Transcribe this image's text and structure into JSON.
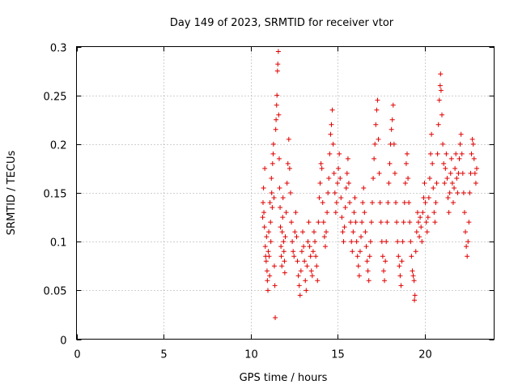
{
  "chart_data": {
    "type": "scatter",
    "title": "Day 149 of 2023, SRMTID for receiver vtor",
    "xlabel": "GPS time / hours",
    "ylabel": "SRMTID / TECUs",
    "xlim": [
      0,
      24
    ],
    "ylim": [
      0,
      0.3
    ],
    "xticks": [
      "0",
      "5",
      "10",
      "15",
      "20"
    ],
    "xtick_values": [
      0,
      5,
      10,
      15,
      20
    ],
    "yticks": [
      "0",
      "0.05",
      "0.1",
      "0.15",
      "0.2",
      "0.25",
      "0.3"
    ],
    "ytick_values": [
      0,
      0.05,
      0.1,
      0.15,
      0.2,
      0.25,
      0.3
    ],
    "grid": true,
    "marker": "+",
    "color": "#e00000",
    "series": [
      {
        "points": [
          [
            10.7,
            0.125
          ],
          [
            10.72,
            0.14
          ],
          [
            10.75,
            0.155
          ],
          [
            10.77,
            0.13
          ],
          [
            10.8,
            0.115
          ],
          [
            10.82,
            0.175
          ],
          [
            10.85,
            0.095
          ],
          [
            10.87,
            0.085
          ],
          [
            10.9,
            0.08
          ],
          [
            10.92,
            0.105
          ],
          [
            10.95,
            0.07
          ],
          [
            10.97,
            0.06
          ],
          [
            11.0,
            0.05
          ],
          [
            11.02,
            0.09
          ],
          [
            11.05,
            0.11
          ],
          [
            11.07,
            0.085
          ],
          [
            11.1,
            0.065
          ],
          [
            11.12,
            0.14
          ],
          [
            11.15,
            0.12
          ],
          [
            11.17,
            0.1
          ],
          [
            11.2,
            0.165
          ],
          [
            11.22,
            0.15
          ],
          [
            11.25,
            0.135
          ],
          [
            11.27,
            0.18
          ],
          [
            11.3,
            0.19
          ],
          [
            11.32,
            0.2
          ],
          [
            11.35,
            0.145
          ],
          [
            11.37,
            0.075
          ],
          [
            11.4,
            0.055
          ],
          [
            11.42,
            0.022
          ],
          [
            11.45,
            0.215
          ],
          [
            11.47,
            0.225
          ],
          [
            11.5,
            0.24
          ],
          [
            11.52,
            0.25
          ],
          [
            11.55,
            0.275
          ],
          [
            11.57,
            0.282
          ],
          [
            11.6,
            0.295
          ],
          [
            11.62,
            0.23
          ],
          [
            11.65,
            0.185
          ],
          [
            11.67,
            0.155
          ],
          [
            11.7,
            0.135
          ],
          [
            11.72,
            0.115
          ],
          [
            11.75,
            0.095
          ],
          [
            11.77,
            0.085
          ],
          [
            11.8,
            0.075
          ],
          [
            11.82,
            0.11
          ],
          [
            11.85,
            0.125
          ],
          [
            11.87,
            0.145
          ],
          [
            11.9,
            0.1
          ],
          [
            11.92,
            0.09
          ],
          [
            11.95,
            0.08
          ],
          [
            11.97,
            0.068
          ],
          [
            12.0,
            0.105
          ],
          [
            12.05,
            0.13
          ],
          [
            12.1,
            0.16
          ],
          [
            12.15,
            0.18
          ],
          [
            12.2,
            0.205
          ],
          [
            12.25,
            0.175
          ],
          [
            12.3,
            0.15
          ],
          [
            12.35,
            0.12
          ],
          [
            12.4,
            0.1
          ],
          [
            12.45,
            0.09
          ],
          [
            12.5,
            0.085
          ],
          [
            12.55,
            0.11
          ],
          [
            12.6,
            0.13
          ],
          [
            12.65,
            0.105
          ],
          [
            12.7,
            0.08
          ],
          [
            12.75,
            0.065
          ],
          [
            12.8,
            0.055
          ],
          [
            12.85,
            0.045
          ],
          [
            12.9,
            0.07
          ],
          [
            12.95,
            0.09
          ],
          [
            13.0,
            0.11
          ],
          [
            13.05,
            0.095
          ],
          [
            13.1,
            0.08
          ],
          [
            13.15,
            0.06
          ],
          [
            13.2,
            0.05
          ],
          [
            13.25,
            0.075
          ],
          [
            13.3,
            0.1
          ],
          [
            13.35,
            0.12
          ],
          [
            13.4,
            0.095
          ],
          [
            13.45,
            0.085
          ],
          [
            13.5,
            0.07
          ],
          [
            13.55,
            0.065
          ],
          [
            13.6,
            0.09
          ],
          [
            13.65,
            0.11
          ],
          [
            13.7,
            0.1
          ],
          [
            13.75,
            0.085
          ],
          [
            13.8,
            0.075
          ],
          [
            13.85,
            0.06
          ],
          [
            13.9,
            0.12
          ],
          [
            13.95,
            0.145
          ],
          [
            14.0,
            0.16
          ],
          [
            14.05,
            0.18
          ],
          [
            14.1,
            0.175
          ],
          [
            14.15,
            0.14
          ],
          [
            14.2,
            0.12
          ],
          [
            14.25,
            0.105
          ],
          [
            14.3,
            0.095
          ],
          [
            14.35,
            0.11
          ],
          [
            14.4,
            0.13
          ],
          [
            14.45,
            0.15
          ],
          [
            14.5,
            0.165
          ],
          [
            14.55,
            0.19
          ],
          [
            14.6,
            0.21
          ],
          [
            14.65,
            0.22
          ],
          [
            14.7,
            0.235
          ],
          [
            14.75,
            0.2
          ],
          [
            14.8,
            0.17
          ],
          [
            14.85,
            0.15
          ],
          [
            14.9,
            0.13
          ],
          [
            14.95,
            0.14
          ],
          [
            15.0,
            0.16
          ],
          [
            15.05,
            0.175
          ],
          [
            15.1,
            0.19
          ],
          [
            15.15,
            0.165
          ],
          [
            15.2,
            0.145
          ],
          [
            15.25,
            0.125
          ],
          [
            15.3,
            0.11
          ],
          [
            15.35,
            0.1
          ],
          [
            15.4,
            0.115
          ],
          [
            15.45,
            0.135
          ],
          [
            15.5,
            0.155
          ],
          [
            15.55,
            0.17
          ],
          [
            15.6,
            0.185
          ],
          [
            15.65,
            0.16
          ],
          [
            15.7,
            0.14
          ],
          [
            15.75,
            0.12
          ],
          [
            15.8,
            0.1
          ],
          [
            15.85,
            0.09
          ],
          [
            15.9,
            0.11
          ],
          [
            15.95,
            0.13
          ],
          [
            16.0,
            0.145
          ],
          [
            16.05,
            0.12
          ],
          [
            16.1,
            0.1
          ],
          [
            16.15,
            0.085
          ],
          [
            16.2,
            0.075
          ],
          [
            16.25,
            0.065
          ],
          [
            16.3,
            0.09
          ],
          [
            16.35,
            0.105
          ],
          [
            16.4,
            0.12
          ],
          [
            16.45,
            0.14
          ],
          [
            16.5,
            0.155
          ],
          [
            16.55,
            0.13
          ],
          [
            16.6,
            0.11
          ],
          [
            16.65,
            0.095
          ],
          [
            16.7,
            0.08
          ],
          [
            16.75,
            0.07
          ],
          [
            16.8,
            0.06
          ],
          [
            16.85,
            0.085
          ],
          [
            16.9,
            0.1
          ],
          [
            16.95,
            0.12
          ],
          [
            17.0,
            0.14
          ],
          [
            17.05,
            0.165
          ],
          [
            17.1,
            0.185
          ],
          [
            17.15,
            0.2
          ],
          [
            17.2,
            0.22
          ],
          [
            17.25,
            0.235
          ],
          [
            17.3,
            0.245
          ],
          [
            17.35,
            0.205
          ],
          [
            17.4,
            0.17
          ],
          [
            17.45,
            0.14
          ],
          [
            17.5,
            0.12
          ],
          [
            17.55,
            0.1
          ],
          [
            17.6,
            0.085
          ],
          [
            17.65,
            0.07
          ],
          [
            17.7,
            0.06
          ],
          [
            17.75,
            0.08
          ],
          [
            17.8,
            0.1
          ],
          [
            17.85,
            0.12
          ],
          [
            17.9,
            0.14
          ],
          [
            17.95,
            0.16
          ],
          [
            18.0,
            0.18
          ],
          [
            18.05,
            0.2
          ],
          [
            18.1,
            0.215
          ],
          [
            18.15,
            0.225
          ],
          [
            18.2,
            0.24
          ],
          [
            18.25,
            0.2
          ],
          [
            18.3,
            0.17
          ],
          [
            18.35,
            0.14
          ],
          [
            18.4,
            0.12
          ],
          [
            18.45,
            0.1
          ],
          [
            18.5,
            0.085
          ],
          [
            18.55,
            0.075
          ],
          [
            18.6,
            0.065
          ],
          [
            18.65,
            0.055
          ],
          [
            18.7,
            0.08
          ],
          [
            18.75,
            0.1
          ],
          [
            18.8,
            0.12
          ],
          [
            18.85,
            0.14
          ],
          [
            18.9,
            0.16
          ],
          [
            18.95,
            0.18
          ],
          [
            19.0,
            0.19
          ],
          [
            19.05,
            0.165
          ],
          [
            19.1,
            0.14
          ],
          [
            19.15,
            0.12
          ],
          [
            19.2,
            0.1
          ],
          [
            19.25,
            0.085
          ],
          [
            19.3,
            0.07
          ],
          [
            19.35,
            0.065
          ],
          [
            19.4,
            0.06
          ],
          [
            19.42,
            0.04
          ],
          [
            19.45,
            0.045
          ],
          [
            19.5,
            0.09
          ],
          [
            19.55,
            0.11
          ],
          [
            19.6,
            0.13
          ],
          [
            19.65,
            0.12
          ],
          [
            19.7,
            0.105
          ],
          [
            19.75,
            0.125
          ],
          [
            19.8,
            0.115
          ],
          [
            19.85,
            0.1
          ],
          [
            19.9,
            0.13
          ],
          [
            19.95,
            0.145
          ],
          [
            20.0,
            0.16
          ],
          [
            20.05,
            0.14
          ],
          [
            20.1,
            0.12
          ],
          [
            20.15,
            0.11
          ],
          [
            20.2,
            0.125
          ],
          [
            20.25,
            0.145
          ],
          [
            20.3,
            0.165
          ],
          [
            20.35,
            0.19
          ],
          [
            20.4,
            0.21
          ],
          [
            20.45,
            0.18
          ],
          [
            20.5,
            0.155
          ],
          [
            20.55,
            0.13
          ],
          [
            20.6,
            0.12
          ],
          [
            20.65,
            0.14
          ],
          [
            20.7,
            0.16
          ],
          [
            20.75,
            0.19
          ],
          [
            20.8,
            0.22
          ],
          [
            20.85,
            0.245
          ],
          [
            20.9,
            0.26
          ],
          [
            20.92,
            0.272
          ],
          [
            20.95,
            0.255
          ],
          [
            21.0,
            0.23
          ],
          [
            21.05,
            0.2
          ],
          [
            21.1,
            0.18
          ],
          [
            21.15,
            0.16
          ],
          [
            21.2,
            0.175
          ],
          [
            21.25,
            0.19
          ],
          [
            21.3,
            0.165
          ],
          [
            21.35,
            0.145
          ],
          [
            21.4,
            0.13
          ],
          [
            21.45,
            0.15
          ],
          [
            21.5,
            0.17
          ],
          [
            21.55,
            0.185
          ],
          [
            21.6,
            0.16
          ],
          [
            21.65,
            0.14
          ],
          [
            21.7,
            0.155
          ],
          [
            21.75,
            0.175
          ],
          [
            21.8,
            0.19
          ],
          [
            21.85,
            0.165
          ],
          [
            21.9,
            0.15
          ],
          [
            21.95,
            0.17
          ],
          [
            22.0,
            0.185
          ],
          [
            22.05,
            0.2
          ],
          [
            22.1,
            0.21
          ],
          [
            22.15,
            0.19
          ],
          [
            22.2,
            0.17
          ],
          [
            22.25,
            0.15
          ],
          [
            22.3,
            0.13
          ],
          [
            22.35,
            0.11
          ],
          [
            22.4,
            0.095
          ],
          [
            22.45,
            0.085
          ],
          [
            22.5,
            0.1
          ],
          [
            22.55,
            0.12
          ],
          [
            22.6,
            0.15
          ],
          [
            22.65,
            0.17
          ],
          [
            22.7,
            0.19
          ],
          [
            22.75,
            0.205
          ],
          [
            22.8,
            0.2
          ],
          [
            22.85,
            0.185
          ],
          [
            22.9,
            0.17
          ],
          [
            22.95,
            0.16
          ],
          [
            23.0,
            0.175
          ]
        ]
      }
    ]
  }
}
